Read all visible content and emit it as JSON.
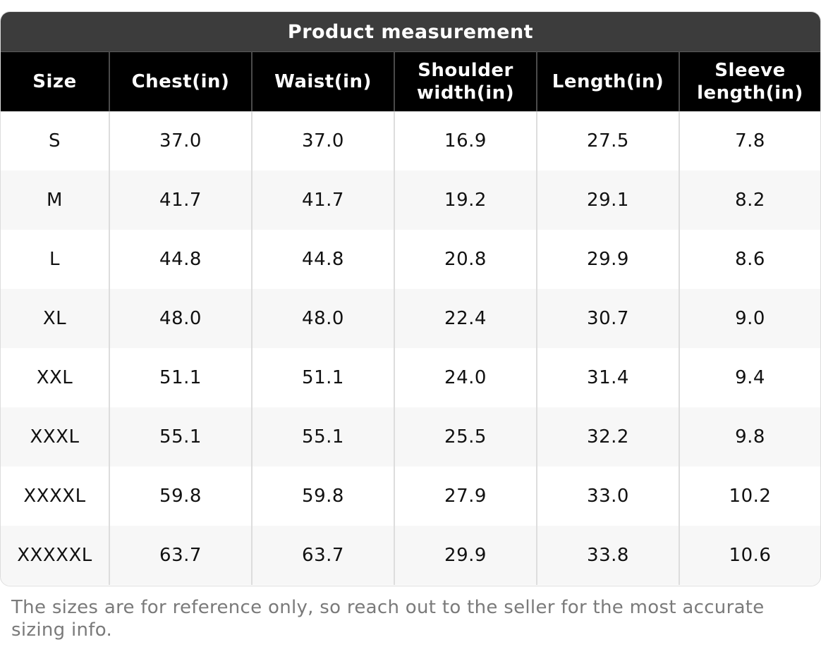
{
  "title": "Product measurement",
  "columns": [
    "Size",
    "Chest(in)",
    "Waist(in)",
    "Shoulder\nwidth(in)",
    "Length(in)",
    "Sleeve\nlength(in)"
  ],
  "rows": [
    [
      "S",
      "37.0",
      "37.0",
      "16.9",
      "27.5",
      "7.8"
    ],
    [
      "M",
      "41.7",
      "41.7",
      "19.2",
      "29.1",
      "8.2"
    ],
    [
      "L",
      "44.8",
      "44.8",
      "20.8",
      "29.9",
      "8.6"
    ],
    [
      "XL",
      "48.0",
      "48.0",
      "22.4",
      "30.7",
      "9.0"
    ],
    [
      "XXL",
      "51.1",
      "51.1",
      "24.0",
      "31.4",
      "9.4"
    ],
    [
      "XXXL",
      "55.1",
      "55.1",
      "25.5",
      "32.2",
      "9.8"
    ],
    [
      "XXXXL",
      "59.8",
      "59.8",
      "27.9",
      "33.0",
      "10.2"
    ],
    [
      "XXXXXL",
      "63.7",
      "63.7",
      "29.9",
      "33.8",
      "10.6"
    ]
  ],
  "footnote": "The sizes are for reference only, so reach out to the seller for the most accurate sizing info.",
  "colors": {
    "title_bg": "#3c3c3c",
    "header_bg": "#000000",
    "row_alt_bg": "#f7f7f7",
    "footnote_text": "#7a7a7a"
  }
}
